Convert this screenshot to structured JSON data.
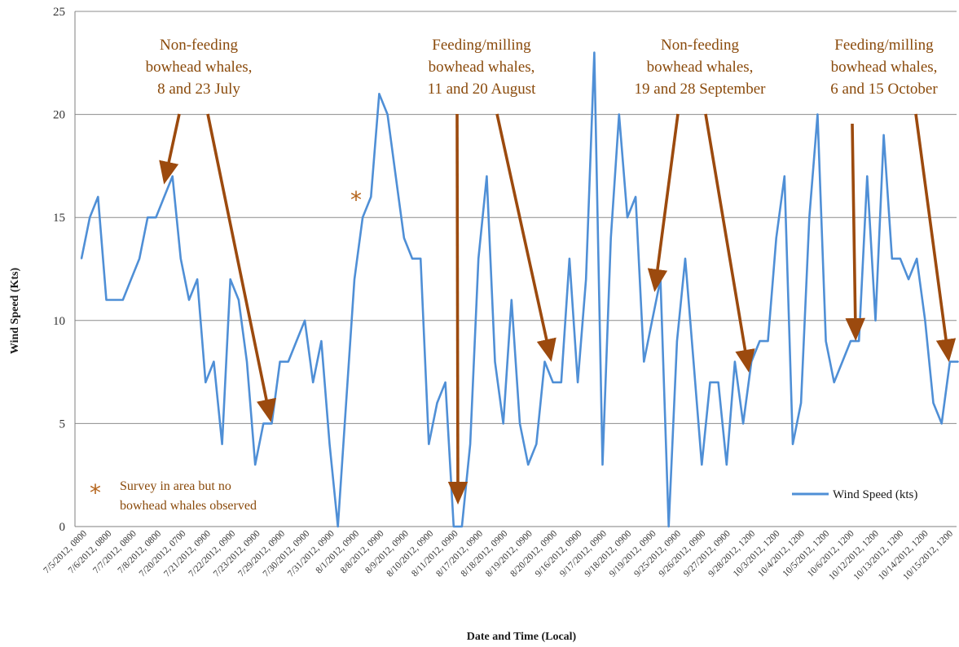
{
  "chart_data": {
    "type": "line",
    "title": "",
    "xlabel": "Date and Time (Local)",
    "ylabel": "Wind Speed (Kts)",
    "ylim": [
      0,
      25
    ],
    "yticks": [
      0,
      5,
      10,
      15,
      20,
      25
    ],
    "grid": "horizontal",
    "legend_position": "bottom-right",
    "colors": {
      "line": "#4f8fd6",
      "arrow": "#9c4a0e",
      "annotation": "#8a4a0b",
      "grid": "#8c8c8c"
    },
    "x_tick_labels": [
      "7/5/2012, 0800",
      "7/6/2012, 0800",
      "7/7/2012, 0800",
      "7/8/2012, 0800",
      "7/20/2012, 0700",
      "7/21/2012, 0900",
      "7/22/2012, 0900",
      "7/23/2012, 0900",
      "7/29/2012, 0900",
      "7/30/2012, 0900",
      "7/31/2012, 0900",
      "8/1/2012, 0900",
      "8/8/2012, 0900",
      "8/9/2012, 0900",
      "8/10/2012, 0900",
      "8/11/2012, 0900",
      "8/17/2012, 0900",
      "8/18/2012, 0900",
      "8/19/2012, 0900",
      "8/20/2012, 0900",
      "9/16/2012, 0900",
      "9/17/2012, 0900",
      "9/18/2012, 0900",
      "9/19/2012, 0900",
      "9/25/2012, 0900",
      "9/26/2012, 0900",
      "9/27/2012, 0900",
      "9/28/2012, 1200",
      "10/3/2012, 1200",
      "10/4/2012, 1200",
      "10/5/2012, 1200",
      "10/6/2012, 1200",
      "10/12/2012, 1200",
      "10/13/2012, 1200",
      "10/14/2012, 1200",
      "10/15/2012, 1200"
    ],
    "series": [
      {
        "name": "Wind Speed (kts)",
        "values": [
          13,
          15,
          16,
          11,
          11,
          11,
          12,
          13,
          15,
          15,
          16,
          17,
          13,
          11,
          12,
          7,
          8,
          4,
          12,
          11,
          8,
          3,
          5,
          5,
          8,
          8,
          9,
          10,
          7,
          9,
          4,
          0,
          6,
          12,
          15,
          16,
          21,
          20,
          17,
          14,
          13,
          13,
          4,
          6,
          7,
          0,
          0,
          4,
          13,
          17,
          8,
          5,
          11,
          5,
          3,
          4,
          8,
          7,
          7,
          13,
          7,
          12,
          23,
          3,
          14,
          20,
          15,
          16,
          8,
          10,
          12,
          0,
          9,
          13,
          8,
          3,
          7,
          7,
          3,
          8,
          5,
          8,
          9,
          9,
          14,
          17,
          4,
          6,
          15,
          20,
          9,
          7,
          8,
          9,
          9,
          17,
          10,
          19,
          13,
          13,
          12,
          13,
          10,
          6,
          5,
          8,
          8
        ]
      }
    ],
    "annotations": [
      {
        "lines": [
          "Non-feeding",
          "bowhead whales,",
          "8 and 23 July"
        ]
      },
      {
        "lines": [
          "Feeding/milling",
          "bowhead whales,",
          "11 and 20 August"
        ]
      },
      {
        "lines": [
          "Non-feeding",
          "bowhead whales,",
          "19 and 28 September"
        ]
      },
      {
        "lines": [
          "Feeding/milling",
          "bowhead whales,",
          "6 and 15 October"
        ]
      }
    ],
    "note": {
      "symbol": "*",
      "lines": [
        "Survey in area but no",
        "bowhead whales observed"
      ]
    }
  }
}
